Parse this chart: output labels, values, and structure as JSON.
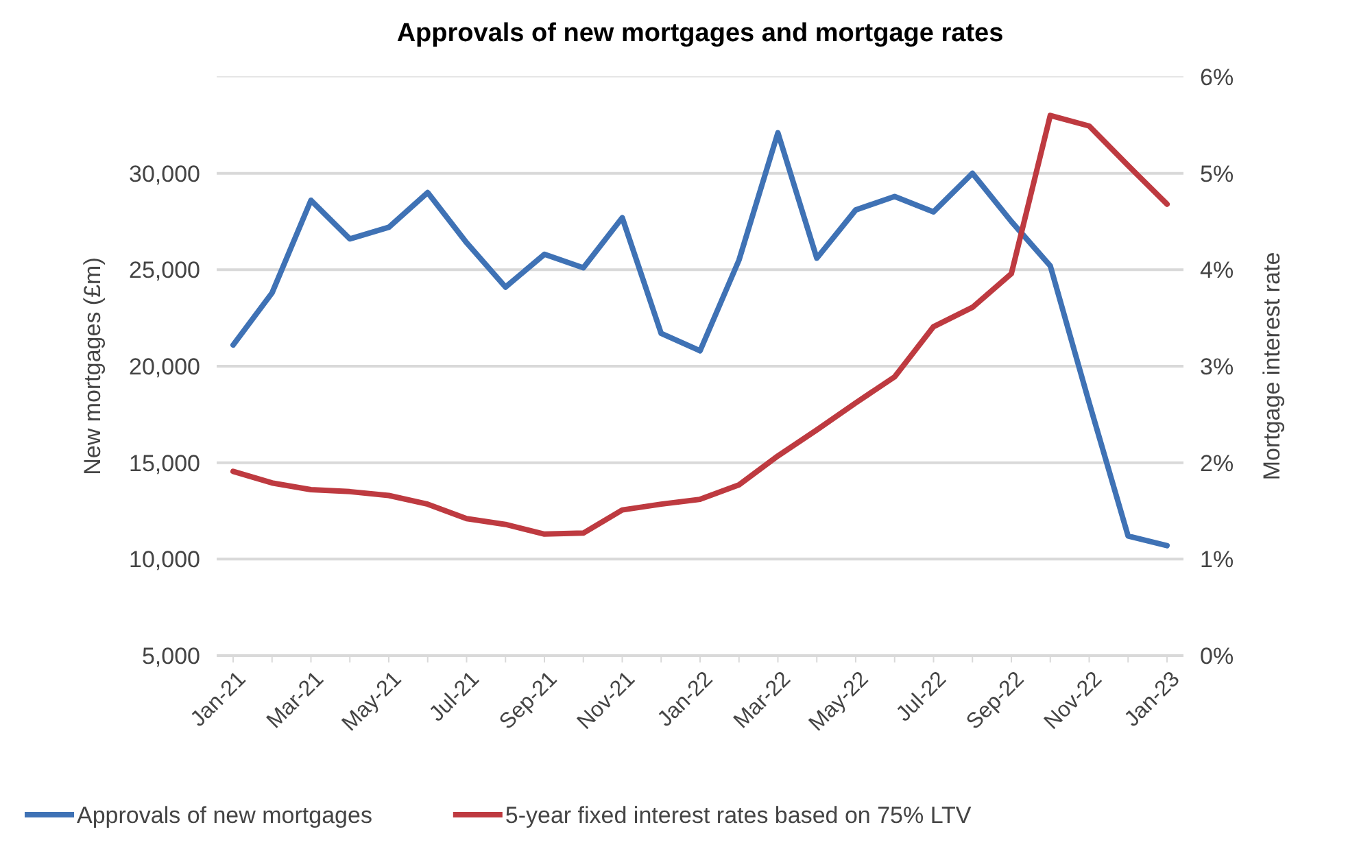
{
  "chart_data": {
    "type": "line",
    "title": "Approvals of new mortgages and mortgage rates",
    "ylabel": "New mortgages (£m)",
    "y2label": "Mortgage interest rate",
    "categories": [
      "Jan-21",
      null,
      "Mar-21",
      null,
      "May-21",
      null,
      "Jul-21",
      null,
      "Sep-21",
      null,
      "Nov-21",
      null,
      "Jan-22",
      null,
      "Mar-22",
      null,
      "May-22",
      null,
      "Jul-22",
      null,
      "Sep-22",
      null,
      "Nov-22",
      null,
      "Jan-23"
    ],
    "series": [
      {
        "name": "Approvals of new mortgages",
        "color": "#3f72b5",
        "values": [
          21100,
          23800,
          28600,
          26600,
          27200,
          29000,
          26400,
          24100,
          25800,
          25100,
          27700,
          21700,
          20800,
          25500,
          32100,
          25600,
          28100,
          28800,
          28000,
          30000,
          27500,
          25200,
          18100,
          11200,
          10700
        ]
      },
      {
        "name": "5-year fixed interest rates based on 75% LTV",
        "color": "#be3a40",
        "axis": "y2",
        "values": [
          1.91,
          1.79,
          1.72,
          1.7,
          1.66,
          1.57,
          1.42,
          1.36,
          1.26,
          1.27,
          1.51,
          1.57,
          1.62,
          1.77,
          2.07,
          2.34,
          2.62,
          2.89,
          3.41,
          3.61,
          3.96,
          5.6,
          5.49,
          5.08,
          4.68
        ]
      }
    ],
    "ylim": [
      5000,
      35000
    ],
    "yticks": [
      {
        "value": 5000,
        "label": "5,000"
      },
      {
        "value": 10000,
        "label": "10,000"
      },
      {
        "value": 15000,
        "label": "15,000"
      },
      {
        "value": 20000,
        "label": "20,000"
      },
      {
        "value": 25000,
        "label": "25,000"
      },
      {
        "value": 30000,
        "label": "30,000"
      }
    ],
    "y2lim": [
      0,
      6
    ],
    "y2ticks": [
      {
        "value": 0,
        "label": "0%"
      },
      {
        "value": 1,
        "label": "1%"
      },
      {
        "value": 2,
        "label": "2%"
      },
      {
        "value": 3,
        "label": "3%"
      },
      {
        "value": 4,
        "label": "4%"
      },
      {
        "value": 5,
        "label": "5%"
      },
      {
        "value": 6,
        "label": "6%"
      }
    ],
    "grid": "y",
    "legend": "bottom",
    "marker": "none",
    "line_style": "solid"
  }
}
